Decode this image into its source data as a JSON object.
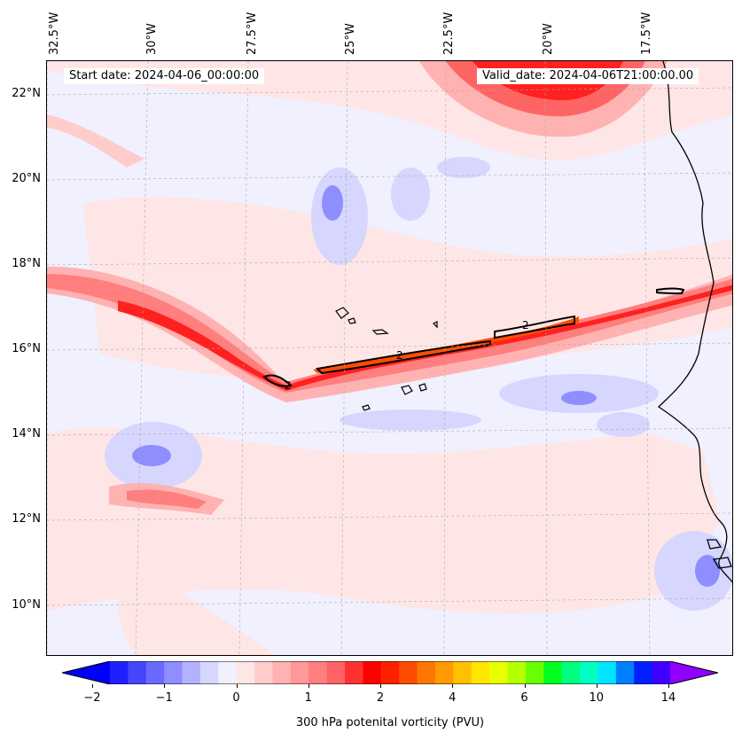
{
  "map": {
    "start_label": "Start date: 2024-04-06_00:00:00",
    "valid_label": "Valid_date: 2024-04-06T21:00:00.00",
    "lon_labels": [
      "32.5°W",
      "30°W",
      "27.5°W",
      "25°W",
      "22.5°W",
      "20°W",
      "17.5°W"
    ],
    "lat_labels": [
      "22°N",
      "20°N",
      "18°N",
      "16°N",
      "14°N",
      "12°N",
      "10°N"
    ],
    "contour_label": "2",
    "colorbar": {
      "ticks": [
        "−2",
        "−1",
        "0",
        "1",
        "2",
        "4",
        "6",
        "10",
        "14"
      ],
      "label": "300 hPa potenital vorticity (PVU)",
      "colors": [
        "#0000ff",
        "#2020ff",
        "#4646ff",
        "#6a6aff",
        "#8e8eff",
        "#b2b2ff",
        "#d6d6ff",
        "#f0f0ff",
        "#ffe6e6",
        "#ffcccc",
        "#ffb2b2",
        "#ff9898",
        "#ff7e7e",
        "#ff6464",
        "#ff3232",
        "#ff0000",
        "#ff2000",
        "#ff4d00",
        "#ff7700",
        "#ff9b00",
        "#ffc000",
        "#ffe500",
        "#e8ff00",
        "#b4ff00",
        "#6aff00",
        "#00ff20",
        "#00ff80",
        "#00ffc0",
        "#00e5ff",
        "#0080ff",
        "#0020ff",
        "#4000ff",
        "#9000ff"
      ]
    },
    "colors": {
      "background": "#f0f0ff",
      "light_pink": "#ffe6e6",
      "pink": "#ffcccc",
      "mid_red": "#ff7e7e",
      "red": "#ff2020",
      "orange_red": "#ff4d00",
      "light_blue": "#d6d6ff",
      "blue": "#8e8eff",
      "coast": "#000000"
    }
  }
}
